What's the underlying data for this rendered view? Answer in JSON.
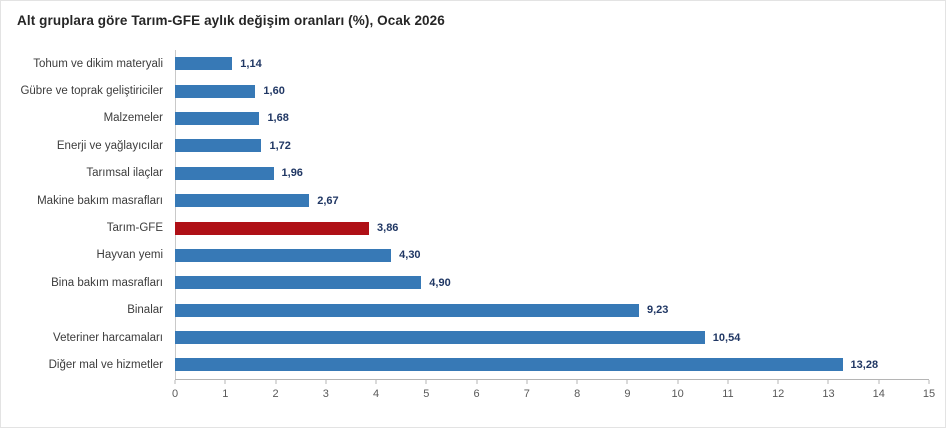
{
  "title": "Alt gruplara göre Tarım-GFE aylık değişim oranları (%), Ocak 2026",
  "chart_data": {
    "type": "bar",
    "orientation": "horizontal",
    "title": "Alt gruplara göre Tarım-GFE aylık değişim oranları (%), Ocak 2026",
    "categories": [
      "Tohum ve dikim materyali",
      "Gübre ve toprak geliştiriciler",
      "Malzemeler",
      "Enerji  ve yağlayıcılar",
      "Tarımsal ilaçlar",
      "Makine bakım masrafları",
      "Tarım-GFE",
      "Hayvan yemi",
      "Bina bakım masrafları",
      "Binalar",
      "Veteriner harcamaları",
      "Diğer mal ve hizmetler"
    ],
    "values": [
      1.14,
      1.6,
      1.68,
      1.72,
      1.96,
      2.67,
      3.86,
      4.3,
      4.9,
      9.23,
      10.54,
      13.28
    ],
    "value_labels": [
      "1,14",
      "1,60",
      "1,68",
      "1,72",
      "1,96",
      "2,67",
      "3,86",
      "4,30",
      "4,90",
      "9,23",
      "10,54",
      "13,28"
    ],
    "highlight_category": "Tarım-GFE",
    "bar_color": "#3779b6",
    "highlight_color": "#af1016",
    "value_label_color": "#203764",
    "xlim": [
      0,
      15
    ],
    "x_ticks": [
      0,
      1,
      2,
      3,
      4,
      5,
      6,
      7,
      8,
      9,
      10,
      11,
      12,
      13,
      14,
      15
    ],
    "grid": false,
    "legend": "none"
  }
}
